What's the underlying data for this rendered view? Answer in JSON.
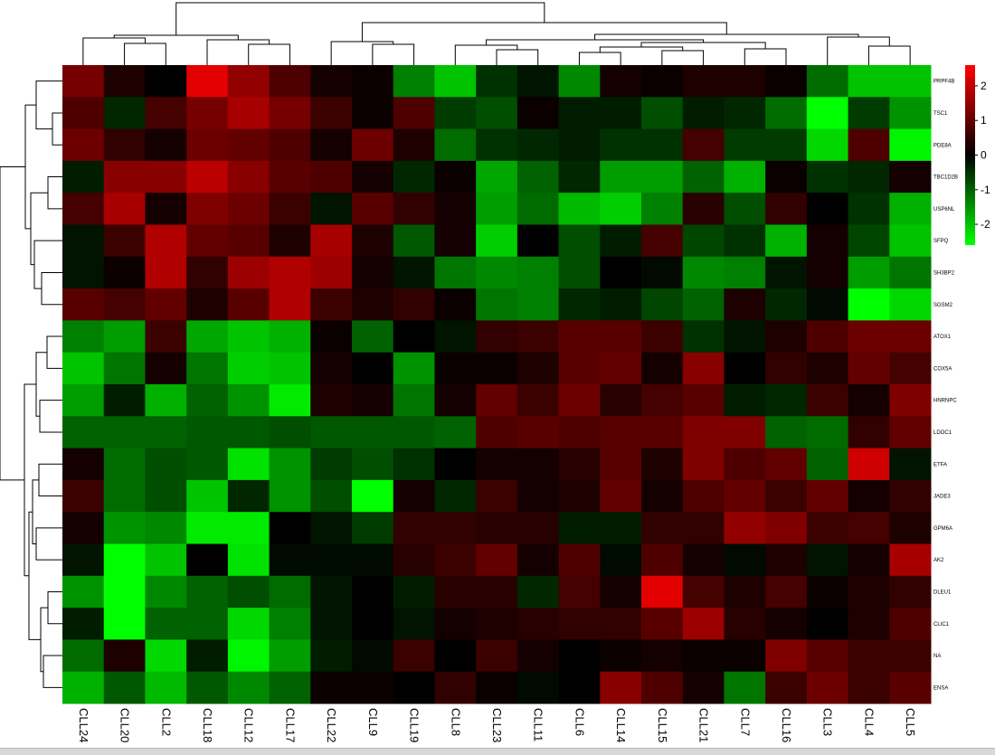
{
  "chart_data": {
    "type": "heatmap",
    "title": "",
    "xlabel": "",
    "ylabel": "",
    "columns": [
      "CLL24",
      "CLL20",
      "CLL2",
      "CLL18",
      "CLL12",
      "CLL17",
      "CLL22",
      "CLL9",
      "CLL19",
      "CLL8",
      "CLL23",
      "CLL11",
      "CLL6",
      "CLL14",
      "CLL15",
      "CLL21",
      "CLL7",
      "CLL16",
      "CLL3",
      "CLL4",
      "CLL5"
    ],
    "rows": [
      "PRPF4B",
      "TSC1",
      "PDE8A",
      "TBC1D2B",
      "USP6NL",
      "SFPQ",
      "SH3BP2",
      "SGSM2",
      "ATOX1",
      "COX5A",
      "HNRNPC",
      "LDOC1",
      "ETFA",
      "JADE3",
      "GPM6A",
      "AK2",
      "DLEU1",
      "CLIC1",
      "NA",
      "ENSA"
    ],
    "values": [
      [
        1.2,
        0.3,
        0.0,
        2.3,
        1.5,
        0.8,
        0.2,
        0.1,
        -1.3,
        -2.0,
        -0.5,
        -0.2,
        -1.4,
        0.2,
        0.1,
        0.3,
        0.3,
        0.1,
        -1.1,
        -2.0,
        -2.0
      ],
      [
        0.8,
        -0.4,
        0.7,
        1.2,
        1.7,
        1.2,
        0.6,
        0.1,
        0.8,
        -0.6,
        -0.8,
        0.1,
        -0.3,
        -0.3,
        -0.8,
        -0.3,
        -0.4,
        -1.1,
        -2.6,
        -0.6,
        -1.5
      ],
      [
        1.1,
        0.5,
        0.2,
        1.1,
        1.0,
        0.8,
        0.2,
        1.1,
        0.3,
        -1.1,
        -0.5,
        -0.4,
        -0.3,
        -0.5,
        -0.5,
        0.7,
        -0.6,
        -0.6,
        -2.2,
        0.8,
        -2.5
      ],
      [
        -0.3,
        1.4,
        1.4,
        1.9,
        1.4,
        0.9,
        0.8,
        0.2,
        -0.4,
        0.1,
        -1.7,
        -1.0,
        -0.4,
        -1.6,
        -1.6,
        -1.0,
        -1.8,
        0.1,
        -0.5,
        -0.4,
        0.2
      ],
      [
        0.7,
        1.7,
        0.2,
        1.3,
        1.1,
        0.6,
        -0.2,
        0.9,
        0.5,
        0.2,
        -1.6,
        -1.1,
        -1.9,
        -2.1,
        -1.3,
        0.4,
        -0.8,
        0.5,
        0.0,
        -0.5,
        -1.8
      ],
      [
        -0.2,
        0.6,
        1.8,
        1.0,
        0.9,
        0.3,
        1.7,
        0.3,
        -0.9,
        0.2,
        -2.1,
        0.0,
        -0.8,
        -0.3,
        0.7,
        -0.7,
        -0.5,
        -1.8,
        0.2,
        -0.7,
        -2.0
      ],
      [
        -0.2,
        0.1,
        1.8,
        0.5,
        1.6,
        1.8,
        1.6,
        0.2,
        -0.2,
        -1.2,
        -1.4,
        -1.3,
        -0.8,
        0.0,
        -0.1,
        -1.4,
        -1.3,
        -0.2,
        0.2,
        -1.6,
        -1.2
      ],
      [
        0.9,
        0.7,
        1.0,
        0.3,
        0.9,
        1.8,
        0.6,
        0.3,
        0.5,
        0.1,
        -1.2,
        -1.3,
        -0.4,
        -0.3,
        -0.7,
        -1.0,
        0.3,
        -0.4,
        -0.1,
        -2.6,
        -2.2
      ],
      [
        -1.3,
        -1.6,
        0.6,
        -1.7,
        -2.0,
        -1.8,
        0.1,
        -1.0,
        0.0,
        -0.2,
        0.5,
        0.6,
        0.9,
        0.9,
        0.6,
        -0.5,
        -0.2,
        0.3,
        0.8,
        1.1,
        1.1
      ],
      [
        -2.0,
        -1.2,
        0.2,
        -1.2,
        -2.1,
        -2.0,
        0.2,
        0.0,
        -1.5,
        0.1,
        0.1,
        0.3,
        0.9,
        1.0,
        0.2,
        1.4,
        0.0,
        0.5,
        0.3,
        1.0,
        0.7
      ],
      [
        -1.6,
        -0.3,
        -1.8,
        -1.0,
        -1.5,
        -2.4,
        0.3,
        0.2,
        -1.2,
        0.2,
        1.0,
        0.6,
        1.1,
        0.4,
        0.7,
        0.9,
        -0.3,
        -0.4,
        0.6,
        0.2,
        1.3
      ],
      [
        -1.0,
        -1.0,
        -1.0,
        -0.9,
        -0.9,
        -0.8,
        -0.9,
        -0.9,
        -0.9,
        -1.0,
        0.8,
        0.9,
        0.8,
        0.9,
        0.9,
        1.3,
        1.3,
        -1.0,
        -1.1,
        0.5,
        1.0
      ],
      [
        0.2,
        -1.1,
        -0.8,
        -0.9,
        -2.3,
        -1.5,
        -0.6,
        -0.8,
        -0.5,
        0.0,
        0.2,
        0.2,
        0.4,
        0.9,
        0.3,
        1.3,
        0.8,
        1.0,
        -1.0,
        2.1,
        -0.2
      ],
      [
        0.6,
        -1.1,
        -0.8,
        -2.0,
        -0.4,
        -1.5,
        -0.8,
        -2.6,
        0.2,
        -0.4,
        0.6,
        0.2,
        0.3,
        1.0,
        0.2,
        0.8,
        1.0,
        0.6,
        1.0,
        0.2,
        0.5
      ],
      [
        0.2,
        -1.5,
        -1.4,
        -2.4,
        -2.4,
        0.0,
        -0.2,
        -0.6,
        0.5,
        0.5,
        0.4,
        0.4,
        -0.3,
        -0.3,
        0.5,
        0.5,
        1.5,
        1.3,
        0.6,
        0.7,
        0.3
      ],
      [
        -0.2,
        -2.6,
        -2.0,
        0.0,
        -2.3,
        -0.1,
        -0.1,
        -0.1,
        0.4,
        0.6,
        1.0,
        0.2,
        0.8,
        -0.1,
        0.8,
        0.2,
        -0.1,
        0.3,
        -0.2,
        0.2,
        1.7
      ],
      [
        -1.5,
        -2.6,
        -1.4,
        -1.0,
        -0.8,
        -1.1,
        -0.2,
        0.0,
        -0.3,
        0.4,
        0.4,
        -0.4,
        0.7,
        0.2,
        2.3,
        0.7,
        0.3,
        0.7,
        0.1,
        0.3,
        0.5
      ],
      [
        -0.3,
        -2.6,
        -1.0,
        -1.0,
        -2.2,
        -1.3,
        -0.2,
        0.0,
        -0.2,
        0.2,
        0.3,
        0.4,
        0.5,
        0.5,
        0.9,
        1.6,
        0.4,
        0.2,
        0.0,
        0.3,
        0.8
      ],
      [
        -1.1,
        0.3,
        -2.2,
        -0.3,
        -2.5,
        -1.6,
        -0.3,
        -0.1,
        0.6,
        0.0,
        0.6,
        0.2,
        0.0,
        0.1,
        0.2,
        0.1,
        0.1,
        1.3,
        0.9,
        0.6,
        0.6
      ],
      [
        -1.8,
        -0.9,
        -1.9,
        -0.9,
        -1.4,
        -1.0,
        0.1,
        0.1,
        0.0,
        0.5,
        0.1,
        -0.1,
        0.0,
        1.4,
        0.8,
        0.2,
        -1.2,
        0.6,
        1.1,
        0.6,
        0.9
      ]
    ],
    "legend": {
      "placement": "right",
      "ticks": [
        "2",
        "1",
        "0",
        "-1",
        "-2"
      ],
      "tick_values": [
        2,
        1,
        0,
        -1,
        -2
      ],
      "range": [
        -2.6,
        2.6
      ],
      "low_color": "#00ff00",
      "mid_color": "#000000",
      "high_color": "#ff0000"
    },
    "colors": {
      "low": "#00ff00",
      "mid": "#000000",
      "high": "#ff0000"
    },
    "grid": false
  }
}
